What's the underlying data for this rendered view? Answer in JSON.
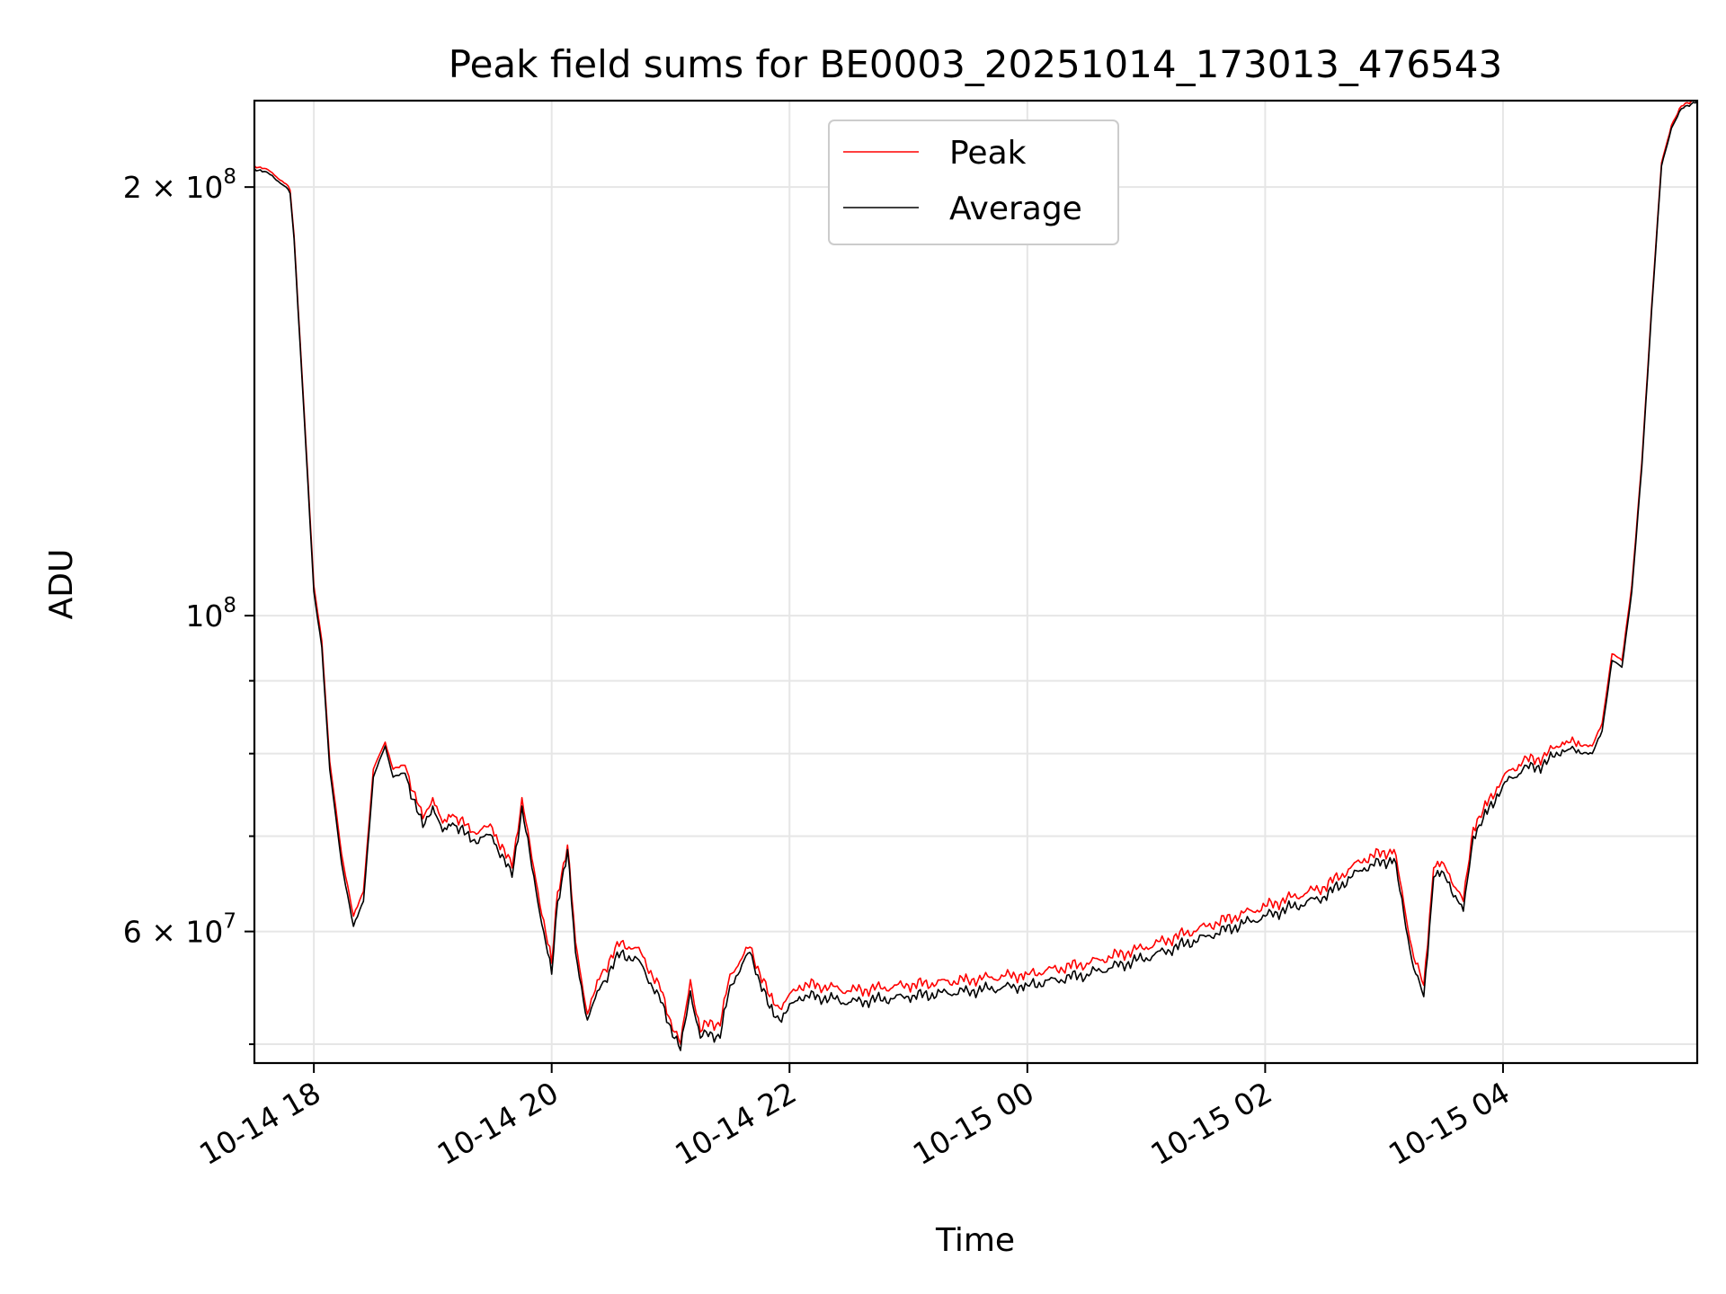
{
  "chart_data": {
    "type": "line",
    "title": "Peak field sums for BE0003_20251014_173013_476543",
    "xlabel": "Time",
    "ylabel": "ADU",
    "yscale": "log",
    "ylim": [
      48500000,
      230000000
    ],
    "xlim": [
      "2025-10-14 17:30",
      "2025-10-15 05:38"
    ],
    "grid": true,
    "legend_position": "top-center",
    "x_ticks": [
      {
        "value": "2025-10-14 18:00",
        "label": "10-14 18"
      },
      {
        "value": "2025-10-14 20:00",
        "label": "10-14 20"
      },
      {
        "value": "2025-10-14 22:00",
        "label": "10-14 22"
      },
      {
        "value": "2025-10-15 00:00",
        "label": "10-15 00"
      },
      {
        "value": "2025-10-15 02:00",
        "label": "10-15 02"
      },
      {
        "value": "2025-10-15 04:00",
        "label": "10-15 04"
      }
    ],
    "y_ticks": [
      {
        "value": 200000000,
        "base": "2 × 10",
        "exp": "8"
      },
      {
        "value": 100000000,
        "base": "10",
        "exp": "8"
      },
      {
        "value": 60000000,
        "base": "6 × 10",
        "exp": "7"
      }
    ],
    "y_minor_ticks": [
      50000000,
      70000000,
      80000000,
      90000000
    ],
    "series": [
      {
        "name": "Peak",
        "color": "#ff0000",
        "x": [
          "2025-10-14 17:30",
          "2025-10-14 17:36",
          "2025-10-14 17:46",
          "2025-10-14 17:48",
          "2025-10-14 17:50",
          "2025-10-14 17:55",
          "2025-10-14 18:00",
          "2025-10-14 18:04",
          "2025-10-14 18:08",
          "2025-10-14 18:14",
          "2025-10-14 18:20",
          "2025-10-14 18:25",
          "2025-10-14 18:30",
          "2025-10-14 18:36",
          "2025-10-14 18:40",
          "2025-10-14 18:46",
          "2025-10-14 18:55",
          "2025-10-14 19:00",
          "2025-10-14 19:05",
          "2025-10-14 19:10",
          "2025-10-14 19:20",
          "2025-10-14 19:30",
          "2025-10-14 19:40",
          "2025-10-14 19:45",
          "2025-10-14 19:50",
          "2025-10-14 20:00",
          "2025-10-14 20:03",
          "2025-10-14 20:08",
          "2025-10-14 20:12",
          "2025-10-14 20:18",
          "2025-10-14 20:25",
          "2025-10-14 20:35",
          "2025-10-14 20:45",
          "2025-10-14 20:55",
          "2025-10-14 21:00",
          "2025-10-14 21:05",
          "2025-10-14 21:10",
          "2025-10-14 21:15",
          "2025-10-14 21:20",
          "2025-10-14 21:25",
          "2025-10-14 21:30",
          "2025-10-14 21:40",
          "2025-10-14 21:50",
          "2025-10-14 21:55",
          "2025-10-14 22:05",
          "2025-10-14 22:15",
          "2025-10-14 22:30",
          "2025-10-14 23:00",
          "2025-10-14 23:30",
          "2025-10-15 00:00",
          "2025-10-15 00:30",
          "2025-10-15 01:00",
          "2025-10-15 01:30",
          "2025-10-15 02:00",
          "2025-10-15 02:30",
          "2025-10-15 02:50",
          "2025-10-15 03:05",
          "2025-10-15 03:15",
          "2025-10-15 03:20",
          "2025-10-15 03:25",
          "2025-10-15 03:30",
          "2025-10-15 03:40",
          "2025-10-15 03:45",
          "2025-10-15 03:50",
          "2025-10-15 04:00",
          "2025-10-15 04:10",
          "2025-10-15 04:20",
          "2025-10-15 04:30",
          "2025-10-15 04:45",
          "2025-10-15 04:50",
          "2025-10-15 04:55",
          "2025-10-15 05:00",
          "2025-10-15 05:05",
          "2025-10-15 05:10",
          "2025-10-15 05:15",
          "2025-10-15 05:20",
          "2025-10-15 05:25",
          "2025-10-15 05:30",
          "2025-10-15 05:38"
        ],
        "values": [
          207000000,
          206000000,
          201000000,
          199000000,
          185000000,
          140000000,
          105000000,
          96000000,
          79000000,
          68000000,
          61500000,
          64000000,
          78000000,
          81500000,
          78000000,
          78500000,
          72000000,
          74500000,
          71500000,
          72500000,
          70500000,
          71000000,
          66500000,
          74500000,
          67500000,
          57000000,
          64000000,
          69000000,
          59000000,
          52500000,
          56000000,
          59000000,
          58000000,
          54500000,
          52000000,
          50000000,
          55500000,
          51000000,
          52000000,
          51500000,
          56000000,
          58500000,
          54000000,
          53000000,
          55000000,
          55000000,
          54500000,
          55000000,
          55500000,
          56000000,
          57000000,
          58500000,
          60500000,
          62500000,
          64500000,
          67500000,
          68500000,
          57500000,
          55000000,
          66500000,
          67000000,
          63000000,
          71000000,
          73000000,
          77000000,
          79000000,
          79500000,
          81500000,
          81000000,
          84000000,
          94000000,
          93000000,
          105000000,
          128000000,
          165000000,
          208000000,
          221000000,
          228000000,
          231000000
        ]
      },
      {
        "name": "Average",
        "color": "#000000",
        "x": [
          "2025-10-14 17:30",
          "2025-10-14 17:36",
          "2025-10-14 17:46",
          "2025-10-14 17:48",
          "2025-10-14 17:50",
          "2025-10-14 17:55",
          "2025-10-14 18:00",
          "2025-10-14 18:04",
          "2025-10-14 18:08",
          "2025-10-14 18:14",
          "2025-10-14 18:20",
          "2025-10-14 18:25",
          "2025-10-14 18:30",
          "2025-10-14 18:36",
          "2025-10-14 18:40",
          "2025-10-14 18:46",
          "2025-10-14 18:55",
          "2025-10-14 19:00",
          "2025-10-14 19:05",
          "2025-10-14 19:10",
          "2025-10-14 19:20",
          "2025-10-14 19:30",
          "2025-10-14 19:40",
          "2025-10-14 19:45",
          "2025-10-14 19:50",
          "2025-10-14 20:00",
          "2025-10-14 20:03",
          "2025-10-14 20:08",
          "2025-10-14 20:12",
          "2025-10-14 20:18",
          "2025-10-14 20:25",
          "2025-10-14 20:35",
          "2025-10-14 20:45",
          "2025-10-14 20:55",
          "2025-10-14 21:00",
          "2025-10-14 21:05",
          "2025-10-14 21:10",
          "2025-10-14 21:15",
          "2025-10-14 21:20",
          "2025-10-14 21:25",
          "2025-10-14 21:30",
          "2025-10-14 21:40",
          "2025-10-14 21:50",
          "2025-10-14 21:55",
          "2025-10-14 22:05",
          "2025-10-14 22:15",
          "2025-10-14 22:30",
          "2025-10-14 23:00",
          "2025-10-14 23:30",
          "2025-10-15 00:00",
          "2025-10-15 00:30",
          "2025-10-15 01:00",
          "2025-10-15 01:30",
          "2025-10-15 02:00",
          "2025-10-15 02:30",
          "2025-10-15 02:50",
          "2025-10-15 03:05",
          "2025-10-15 03:15",
          "2025-10-15 03:20",
          "2025-10-15 03:25",
          "2025-10-15 03:30",
          "2025-10-15 03:40",
          "2025-10-15 03:45",
          "2025-10-15 03:50",
          "2025-10-15 04:00",
          "2025-10-15 04:10",
          "2025-10-15 04:20",
          "2025-10-15 04:30",
          "2025-10-15 04:45",
          "2025-10-15 04:50",
          "2025-10-15 04:55",
          "2025-10-15 05:00",
          "2025-10-15 05:05",
          "2025-10-15 05:10",
          "2025-10-15 05:15",
          "2025-10-15 05:20",
          "2025-10-15 05:25",
          "2025-10-15 05:30",
          "2025-10-15 05:38"
        ],
        "values": [
          206000000,
          205000000,
          200000000,
          198000000,
          184000000,
          139000000,
          104000000,
          95000000,
          78000000,
          67000000,
          60500000,
          63000000,
          77000000,
          81000000,
          77000000,
          77500000,
          71000000,
          73500000,
          70500000,
          71500000,
          69500000,
          70000000,
          65500000,
          73500000,
          66500000,
          56000000,
          63000000,
          68500000,
          58000000,
          52000000,
          55000000,
          58000000,
          57000000,
          53500000,
          51500000,
          49500000,
          54500000,
          50500000,
          51000000,
          50500000,
          55000000,
          58000000,
          53000000,
          52000000,
          54000000,
          54000000,
          53500000,
          54000000,
          54500000,
          55000000,
          56000000,
          57500000,
          59500000,
          61500000,
          63500000,
          66500000,
          67500000,
          56500000,
          54000000,
          65500000,
          66000000,
          62000000,
          70000000,
          72000000,
          76000000,
          78000000,
          78500000,
          80500000,
          80000000,
          83000000,
          93000000,
          92000000,
          104000000,
          127000000,
          164000000,
          207000000,
          220000000,
          227000000,
          230000000
        ]
      }
    ]
  }
}
